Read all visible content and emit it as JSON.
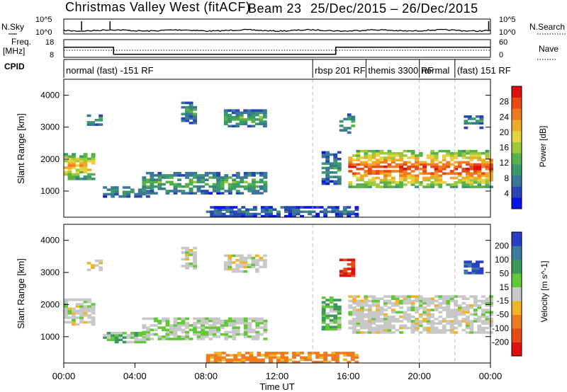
{
  "chart_data": {
    "type": "heatmap",
    "title": {
      "radar": "Christmas Valley West (fitACF)",
      "beam": "Beam 23",
      "dates": "25/Dec/2015 – 26/Dec/2015"
    },
    "xlabel": "Time UT",
    "x_ticks": [
      "00:00",
      "04:00",
      "08:00",
      "12:00",
      "16:00",
      "20:00",
      "00:00"
    ],
    "x_range_hours": [
      0,
      24
    ],
    "dashed_time_markers_hours": [
      14,
      20,
      22
    ],
    "nsky_panel": {
      "left_label": "N.Sky",
      "left_ticks": [
        "10^5",
        "10^0"
      ],
      "right_label": "N.Search",
      "right_ticks": [
        "10^5",
        "10^0"
      ]
    },
    "freq_panel": {
      "left_label": "Freq.",
      "left_unit": "[MHz]",
      "left_ticks": [
        "18",
        "8"
      ],
      "right_label": "Nave",
      "right_ticks": [
        "60",
        "0"
      ],
      "frequency_segments": [
        {
          "t0": 0.0,
          "t1": 2.8,
          "mhz": 14.5
        },
        {
          "t0": 2.8,
          "t1": 15.3,
          "mhz": 10.5
        },
        {
          "t0": 15.3,
          "t1": 24.0,
          "mhz": 14.5
        }
      ]
    },
    "cpid_panel": {
      "label": "CPID",
      "segments": [
        {
          "t0": 0.0,
          "t1": 14.0,
          "text": "normal (fast) -151 RF"
        },
        {
          "t0": 14.0,
          "t1": 17.0,
          "text": "rbsp 201 RF"
        },
        {
          "t0": 17.0,
          "t1": 20.0,
          "text": "themis 3300 RF"
        },
        {
          "t0": 20.0,
          "t1": 22.0,
          "text": "normal"
        },
        {
          "t0": 22.0,
          "t1": 24.0,
          "text": "(fast) 151 RF"
        }
      ]
    },
    "power_panel": {
      "ylabel": "Slant Range [km]",
      "y_ticks": [
        1000,
        2000,
        3000,
        4000
      ],
      "ylim": [
        180,
        4500
      ],
      "colorbar_label": "Power [dB]",
      "colorbar_ticks": [
        "4",
        "8",
        "12",
        "16",
        "20",
        "24",
        "28"
      ],
      "colorbar_range": [
        0,
        32
      ],
      "colorbar_colors": [
        "#0a14e6",
        "#2846b4",
        "#3c7896",
        "#3a9a6e",
        "#58b048",
        "#9cc83a",
        "#e6d23a",
        "#f0aa28",
        "#f07a1e",
        "#e84a14",
        "#e01010"
      ]
    },
    "velocity_panel": {
      "ylabel": "Slant Range [km]",
      "y_ticks": [
        1000,
        2000,
        3000,
        4000
      ],
      "ylim": [
        180,
        4500
      ],
      "colorbar_label": "Velocity [m s^-1]",
      "colorbar_ticks": [
        "200",
        "100",
        "50",
        "15",
        "-15",
        "-50",
        "-100",
        "-200"
      ],
      "colorbar_colors": [
        "#2a3fc8",
        "#3c7aa0",
        "#3a9a5a",
        "#62c83a",
        "#c8c8c8",
        "#f0b428",
        "#f07a1e",
        "#e84a14",
        "#e01010"
      ]
    },
    "echo_regions": [
      {
        "t0": 0.0,
        "t1": 1.7,
        "r0": 1350,
        "r1": 2150,
        "power": 18,
        "velocity": 0
      },
      {
        "t0": 1.3,
        "t1": 2.1,
        "r0": 3050,
        "r1": 3350,
        "power": 10,
        "velocity": 0
      },
      {
        "t0": 2.2,
        "t1": 4.8,
        "r0": 800,
        "r1": 1150,
        "power": 8,
        "velocity": 20
      },
      {
        "t0": 4.4,
        "t1": 11.3,
        "r0": 900,
        "r1": 1550,
        "power": 10,
        "velocity": 10
      },
      {
        "t0": 9.0,
        "t1": 11.4,
        "r0": 3000,
        "r1": 3500,
        "power": 10,
        "velocity": 0
      },
      {
        "t0": 6.6,
        "t1": 7.3,
        "r0": 3100,
        "r1": 3800,
        "power": 8,
        "velocity": 0
      },
      {
        "t0": 14.5,
        "t1": 15.5,
        "r0": 1200,
        "r1": 2200,
        "power": 8,
        "velocity": 30
      },
      {
        "t0": 15.5,
        "t1": 16.3,
        "r0": 2800,
        "r1": 3400,
        "power": 10,
        "velocity": -150
      },
      {
        "t0": 16.0,
        "t1": 24.0,
        "r0": 1100,
        "r1": 2250,
        "power": 22,
        "velocity": 0
      },
      {
        "t0": 22.5,
        "t1": 23.5,
        "r0": 2950,
        "r1": 3350,
        "power": 8,
        "velocity": 150
      },
      {
        "t0": 8.0,
        "t1": 16.5,
        "r0": 180,
        "r1": 480,
        "power": 6,
        "velocity": -40
      }
    ]
  }
}
